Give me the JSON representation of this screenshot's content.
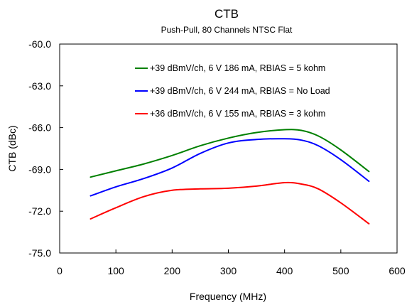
{
  "chart_data": {
    "type": "line",
    "title": "CTB",
    "subtitle": "Push-Pull, 80 Channels NTSC Flat",
    "xlabel": "Frequency (MHz)",
    "ylabel": "CTB (dBc)",
    "xlim": [
      0,
      600
    ],
    "ylim": [
      -75,
      -60
    ],
    "xticks": [
      "0",
      "100",
      "200",
      "300",
      "400",
      "500",
      "600"
    ],
    "yticks": [
      "-60.0",
      "-63.0",
      "-66.0",
      "-69.0",
      "-72.0",
      "-75.0"
    ],
    "grid": false,
    "legend_position": "top-right",
    "series": [
      {
        "name": "+39 dBmV/ch, 6 V 186 mA, RBIAS = 5 kohm",
        "color": "#008000",
        "x": [
          55,
          100,
          150,
          200,
          250,
          300,
          350,
          400,
          430,
          460,
          500,
          550
        ],
        "y": [
          -69.55,
          -69.1,
          -68.6,
          -68.0,
          -67.3,
          -66.75,
          -66.35,
          -66.15,
          -66.2,
          -66.6,
          -67.6,
          -69.15
        ]
      },
      {
        "name": "+39 dBmV/ch, 6 V 244 mA, RBIAS = No Load",
        "color": "#0000ff",
        "x": [
          55,
          100,
          150,
          200,
          250,
          300,
          350,
          400,
          430,
          460,
          500,
          550
        ],
        "y": [
          -70.9,
          -70.25,
          -69.65,
          -68.9,
          -67.85,
          -67.1,
          -66.85,
          -66.8,
          -66.9,
          -67.3,
          -68.3,
          -69.85
        ]
      },
      {
        "name": "+36 dBmV/ch, 6 V 155 mA, RBIAS = 3 kohm",
        "color": "#ff0000",
        "x": [
          55,
          100,
          150,
          200,
          250,
          300,
          350,
          400,
          430,
          460,
          500,
          550
        ],
        "y": [
          -72.55,
          -71.75,
          -70.95,
          -70.5,
          -70.4,
          -70.35,
          -70.2,
          -69.95,
          -70.05,
          -70.4,
          -71.4,
          -72.9
        ]
      }
    ]
  }
}
